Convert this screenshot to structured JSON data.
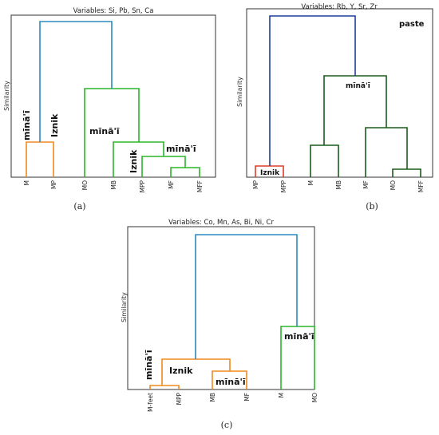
{
  "colors": {
    "blue": "#2a8bbf",
    "navy": "#1f3f9a",
    "green": "#2ab52a",
    "darkgreen": "#1a5c1a",
    "orange": "#f08a1c",
    "red": "#e03c2a"
  },
  "chart_data": [
    {
      "type": "dendrogram",
      "panel": "(a)",
      "title": "Variables: Si, Pb, Sn, Ca",
      "ylabel": "Similarity",
      "leaves": [
        "M",
        "MP",
        "MO",
        "MB",
        "MPP",
        "MF",
        "MFF"
      ],
      "groups": [
        {
          "text": "mīnā'ī",
          "orientation": "vertical"
        },
        {
          "text": "Iznik",
          "orientation": "vertical"
        },
        {
          "text": "mīnā'ī",
          "orientation": "horizontal"
        },
        {
          "text": "Iznik",
          "orientation": "vertical"
        },
        {
          "text": "mīnā'ī",
          "orientation": "horizontal"
        }
      ],
      "merges": [
        {
          "members": [
            "M",
            "MP"
          ],
          "height": 0.19,
          "color": "orange"
        },
        {
          "members": [
            "MF",
            "MFF"
          ],
          "height": 0.045,
          "color": "green"
        },
        {
          "members": [
            "MPP",
            "MF",
            "MFF"
          ],
          "height": 0.11,
          "color": "green"
        },
        {
          "members": [
            "MB",
            "MPP",
            "MF",
            "MFF"
          ],
          "height": 0.19,
          "color": "green"
        },
        {
          "members": [
            "MO",
            "MB",
            "MPP",
            "MF",
            "MFF"
          ],
          "height": 0.49,
          "color": "green"
        },
        {
          "members": [
            "M",
            "MP",
            "MO",
            "MB",
            "MPP",
            "MF",
            "MFF"
          ],
          "height": 0.86,
          "color": "blue"
        }
      ]
    },
    {
      "type": "dendrogram",
      "panel": "(b)",
      "title": "Variables: Rb, Y, Sr, Zr",
      "ylabel": "Similarity",
      "annotation": "paste",
      "leaves": [
        "MP",
        "MPP",
        "M",
        "MB",
        "MF",
        "MO",
        "MFF"
      ],
      "groups": [
        {
          "text": "Iznik",
          "orientation": "horizontal"
        },
        {
          "text": "mīnā'ī",
          "orientation": "horizontal"
        }
      ],
      "merges": [
        {
          "members": [
            "MP",
            "MPP"
          ],
          "height": 0.065,
          "color": "red"
        },
        {
          "members": [
            "MO",
            "MFF"
          ],
          "height": 0.045,
          "color": "darkgreen"
        },
        {
          "members": [
            "M",
            "MB"
          ],
          "height": 0.19,
          "color": "darkgreen"
        },
        {
          "members": [
            "MF",
            "MO",
            "MFF"
          ],
          "height": 0.3,
          "color": "darkgreen"
        },
        {
          "members": [
            "M",
            "MB",
            "MF",
            "MO",
            "MFF"
          ],
          "height": 0.62,
          "color": "darkgreen"
        },
        {
          "members": [
            "MP",
            "MPP",
            "M",
            "MB",
            "MF",
            "MO",
            "MFF"
          ],
          "height": 0.94,
          "color": "navy"
        }
      ]
    },
    {
      "type": "dendrogram",
      "panel": "(c)",
      "title": "Variables: Co, Mn, As, Bi, Ni, Cr",
      "ylabel": "Similarity",
      "leaves": [
        "M-feet",
        "MPP",
        "MB",
        "MF",
        "M",
        "MO"
      ],
      "groups": [
        {
          "text": "mīnā'ī",
          "orientation": "vertical"
        },
        {
          "text": "Iznik",
          "orientation": "horizontal"
        },
        {
          "text": "mīnā'ī",
          "orientation": "horizontal"
        },
        {
          "text": "mīnā'ī",
          "orientation": "horizontal"
        }
      ],
      "merges": [
        {
          "members": [
            "M-feet",
            "MPP"
          ],
          "height": 0.02,
          "color": "orange"
        },
        {
          "members": [
            "MB",
            "MF"
          ],
          "height": 0.11,
          "color": "orange"
        },
        {
          "members": [
            "M-feet",
            "MPP",
            "MB",
            "MF"
          ],
          "height": 0.19,
          "color": "orange"
        },
        {
          "members": [
            "M",
            "MO"
          ],
          "height": 0.4,
          "color": "green"
        },
        {
          "members": [
            "M-feet",
            "MPP",
            "MB",
            "MF",
            "M",
            "MO"
          ],
          "height": 0.98,
          "color": "blue"
        }
      ]
    }
  ]
}
